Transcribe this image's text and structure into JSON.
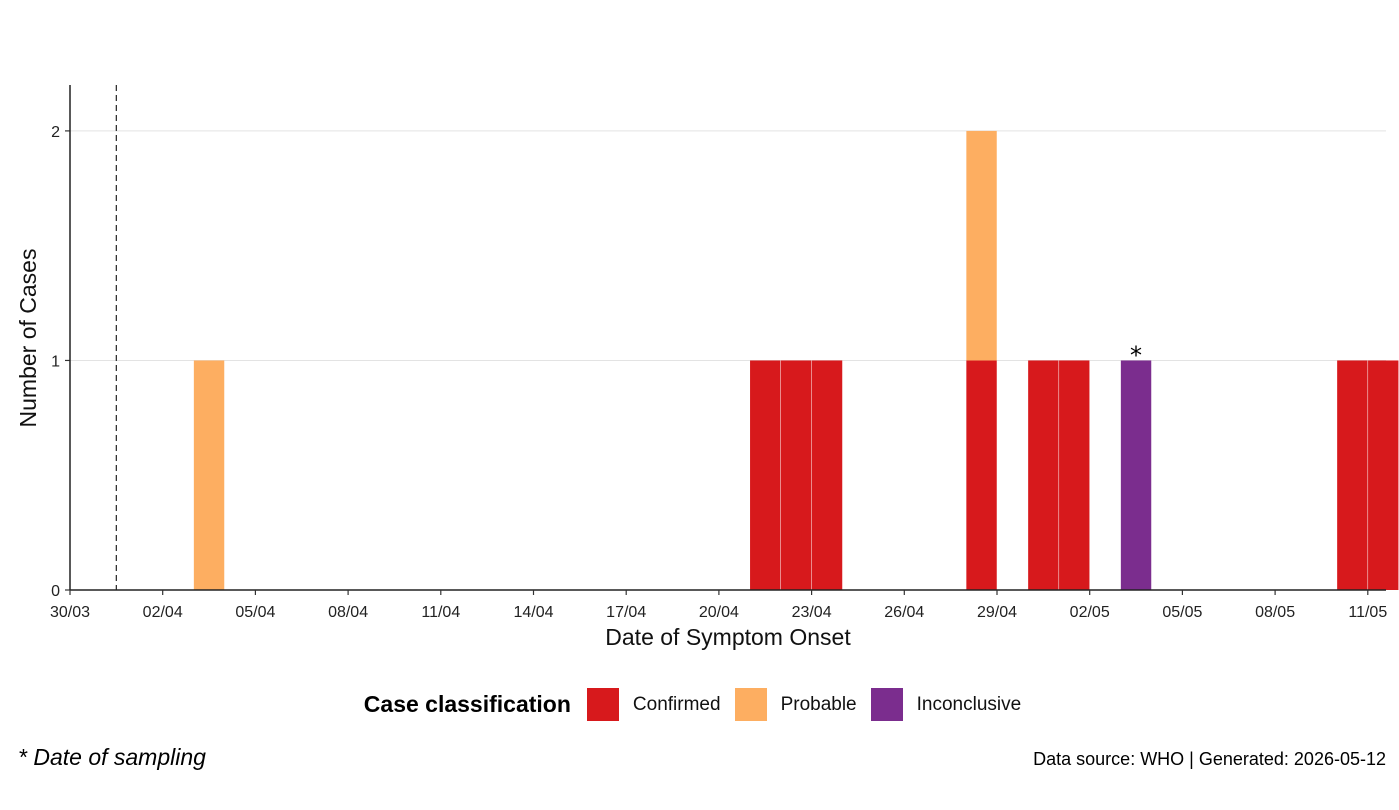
{
  "chart_data": {
    "type": "bar",
    "stacked": true,
    "title": "",
    "xlabel": "Date of Symptom Onset",
    "ylabel": "Number of Cases",
    "x_start": "30/03",
    "x_ticks": [
      "30/03",
      "02/04",
      "05/04",
      "08/04",
      "11/04",
      "14/04",
      "17/04",
      "20/04",
      "23/04",
      "26/04",
      "29/04",
      "02/05",
      "05/05",
      "08/05",
      "11/05"
    ],
    "y_ticks": [
      "0",
      "1",
      "2"
    ],
    "ylim": [
      0,
      2.2
    ],
    "grid": "horizontal",
    "reference_line": {
      "date": "31/03",
      "style": "dashed"
    },
    "series": [
      {
        "name": "Confirmed",
        "color": "#d7191c",
        "points": [
          {
            "date": "21/04",
            "value": 1
          },
          {
            "date": "22/04",
            "value": 1
          },
          {
            "date": "23/04",
            "value": 1
          },
          {
            "date": "28/04",
            "value": 1
          },
          {
            "date": "30/04",
            "value": 1
          },
          {
            "date": "01/05",
            "value": 1
          },
          {
            "date": "10/05",
            "value": 1
          },
          {
            "date": "11/05",
            "value": 1
          }
        ]
      },
      {
        "name": "Probable",
        "color": "#fdae61",
        "points": [
          {
            "date": "03/04",
            "value": 1
          },
          {
            "date": "28/04",
            "value": 1
          }
        ]
      },
      {
        "name": "Inconclusive",
        "color": "#7b2d8e",
        "points": [
          {
            "date": "03/05",
            "value": 1
          }
        ]
      }
    ],
    "annotations": [
      {
        "date": "03/05",
        "text": "*"
      }
    ],
    "legend": {
      "title": "Case classification",
      "position": "bottom"
    }
  },
  "footnote": "* Date of sampling",
  "source": "Data source: WHO  |  Generated: 2026-05-12"
}
